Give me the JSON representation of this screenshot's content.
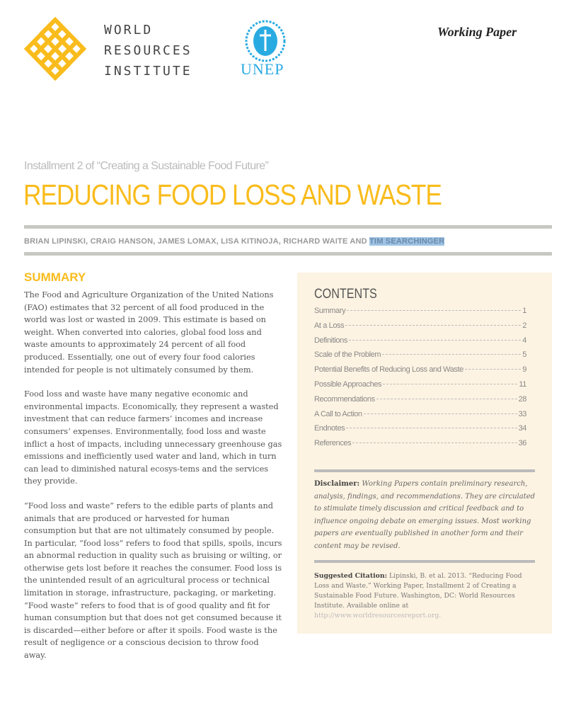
{
  "header": {
    "wri_logo_text": [
      "WORLD",
      "RESOURCES",
      "INSTITUTE"
    ],
    "unep_logo_text": "UNEP",
    "doc_type": "Working Paper",
    "colors": {
      "wri_yellow": "#f9bc1c",
      "unep_blue": "#29abe2"
    }
  },
  "installment": "Installment 2 of “Creating a Sustainable Food Future”",
  "title": "REDUCING FOOD LOSS AND WASTE",
  "authors": "BRIAN LIPINSKI, CRAIG HANSON, JAMES LOMAX, LISA KITINOJA, RICHARD WAITE AND ",
  "authors_selected": "TIM SEARCHINGER",
  "summary": {
    "heading": "SUMMARY",
    "paragraphs": [
      "The Food and Agriculture Organization of the United Nations (FAO) estimates that 32 percent of all food produced in the world was lost or wasted in 2009. This estimate is based on weight. When converted into calories, global food loss and waste amounts to approximately 24 percent of all food produced. Essentially, one out of every four food calories intended for people is not ultimately consumed by them.",
      "Food loss and waste have many negative economic and environmental impacts. Economically, they represent a wasted investment that can reduce farmers’ incomes and increase consumers’ expenses. Environmentally, food loss and waste inflict a host of impacts, including unnecessary greenhouse gas emissions and inefficiently used water and land, which in turn can lead to diminished natural ecosys-tems and the services they provide.",
      "“Food loss and waste” refers to the edible parts of plants and animals that are produced or harvested for human consumption but that are not ultimately consumed by people. In particular, “food loss” refers to food that spills, spoils, incurs an abnormal reduction in quality such as bruising or wilting, or otherwise gets lost before it reaches the consumer. Food loss is the unintended result of an agricultural process or technical limitation in storage, infrastructure, packaging, or marketing. “Food waste” refers to food that is of good quality and fit for human consumption but that does not get consumed because it is discarded—either before or after it spoils. Food waste is the result of negligence or a conscious decision to throw food away."
    ]
  },
  "sidebar": {
    "contents_heading": "CONTENTS",
    "toc": [
      {
        "label": "Summary",
        "page": "1"
      },
      {
        "label": "At a Loss",
        "page": "2"
      },
      {
        "label": "Definitions",
        "page": "4"
      },
      {
        "label": "Scale of the Problem",
        "page": "5"
      },
      {
        "label": "Potential Benefits of Reducing Loss and Waste",
        "page": "9"
      },
      {
        "label": "Possible Approaches",
        "page": "11"
      },
      {
        "label": "Recommendations",
        "page": "28"
      },
      {
        "label": "A Call to Action",
        "page": "33"
      },
      {
        "label": "Endnotes",
        "page": "34"
      },
      {
        "label": "References",
        "page": "36"
      }
    ],
    "disclaimer_label": "Disclaimer:",
    "disclaimer_text": " Working Papers contain preliminary research, analysis, findings, and recommendations. They are circulated to stimulate timely discussion and critical feedback and to influence ongoing debate on emerging issues. Most working papers are eventually published in another form and their content may be revised.",
    "citation_label": "Suggested Citation:",
    "citation_text": " Lipinski, B. et al. 2013. “Reducing Food Loss and Waste.” Working Paper, Installment 2 of Creating a Sustainable Food Future. Washington, DC: World Resources Institute. Available online at ",
    "citation_url": "http://www.worldresourcesreport.org."
  }
}
